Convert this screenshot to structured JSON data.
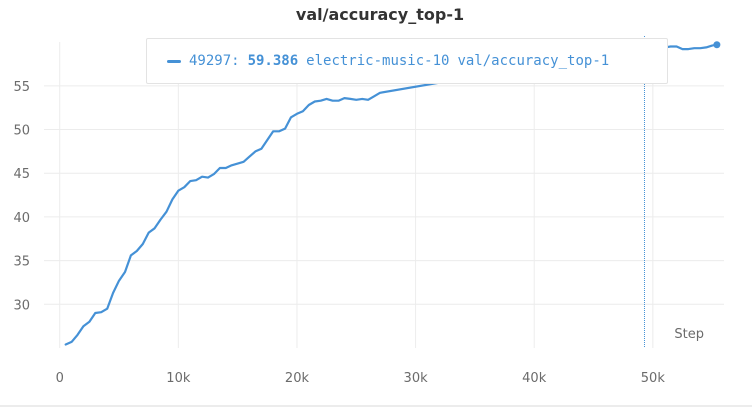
{
  "chart_data": {
    "type": "line",
    "title": "val/accuracy_top-1",
    "xlabel": "Step",
    "ylabel": "",
    "xlim": [
      -2000,
      56000
    ],
    "ylim": [
      25,
      60.7
    ],
    "xticks": [
      0,
      10000,
      20000,
      30000,
      40000,
      50000
    ],
    "xtick_labels": [
      "0",
      "10k",
      "20k",
      "30k",
      "40k",
      "50k"
    ],
    "yticks": [
      30,
      35,
      40,
      45,
      50,
      55
    ],
    "ytick_labels": [
      "30",
      "35",
      "40",
      "45",
      "50",
      "55"
    ],
    "grid": true,
    "legend": "none",
    "hover_step": 49297,
    "series": [
      {
        "name": "electric-music-10 val/accuracy_top-1",
        "color": "#4591d6",
        "x": [
          500,
          1000,
          1500,
          2000,
          2500,
          3000,
          3500,
          4000,
          4500,
          5000,
          5500,
          6000,
          6500,
          7000,
          7500,
          8000,
          8500,
          9000,
          9500,
          10000,
          10500,
          11000,
          11500,
          12000,
          12500,
          13000,
          13500,
          14000,
          14500,
          15000,
          15500,
          16000,
          16500,
          17000,
          17500,
          18000,
          18500,
          19000,
          19500,
          20000,
          20500,
          21000,
          21500,
          22000,
          22500,
          23000,
          23500,
          24000,
          24500,
          25000,
          25500,
          26000,
          26500,
          27000,
          49297,
          50000,
          50500,
          51000,
          51500,
          52000,
          52500,
          53000,
          53500,
          54000,
          54500,
          55000,
          55400
        ],
        "y": [
          25.4,
          25.7,
          26.5,
          27.5,
          28.0,
          29.0,
          29.1,
          29.5,
          31.3,
          32.7,
          33.7,
          35.6,
          36.1,
          36.9,
          38.2,
          38.7,
          39.7,
          40.6,
          42.0,
          43.0,
          43.4,
          44.1,
          44.2,
          44.6,
          44.5,
          44.9,
          45.6,
          45.6,
          45.9,
          46.1,
          46.3,
          46.9,
          47.5,
          47.8,
          48.8,
          49.8,
          49.8,
          50.1,
          51.4,
          51.8,
          52.1,
          52.8,
          53.2,
          53.3,
          53.5,
          53.3,
          53.3,
          53.6,
          53.5,
          53.4,
          53.5,
          53.4,
          53.8,
          54.2,
          59.386,
          59.5,
          59.5,
          59.4,
          59.5,
          59.5,
          59.2,
          59.2,
          59.3,
          59.3,
          59.4,
          59.6,
          59.7
        ]
      }
    ]
  },
  "tooltip": {
    "step": "49297:",
    "value": "59.386",
    "run_name": "electric-music-10",
    "metric": "val/accuracy_top-1"
  }
}
